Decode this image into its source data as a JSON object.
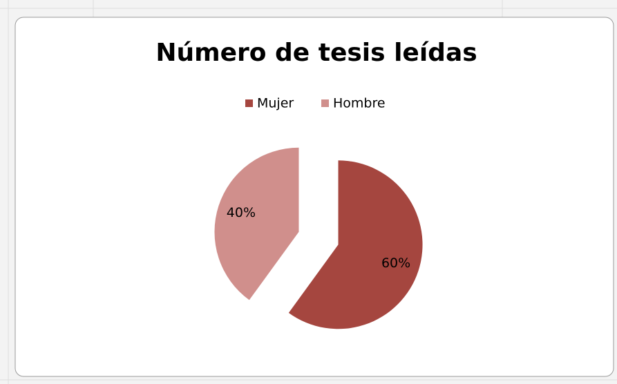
{
  "chart_data": {
    "type": "pie",
    "title": "Número de tesis leídas",
    "categories": [
      "Mujer",
      "Hombre"
    ],
    "values": [
      60,
      40
    ],
    "value_labels": [
      "60%",
      "40%"
    ],
    "colors": [
      "#a5463f",
      "#d08f8c"
    ],
    "legend": "top"
  }
}
